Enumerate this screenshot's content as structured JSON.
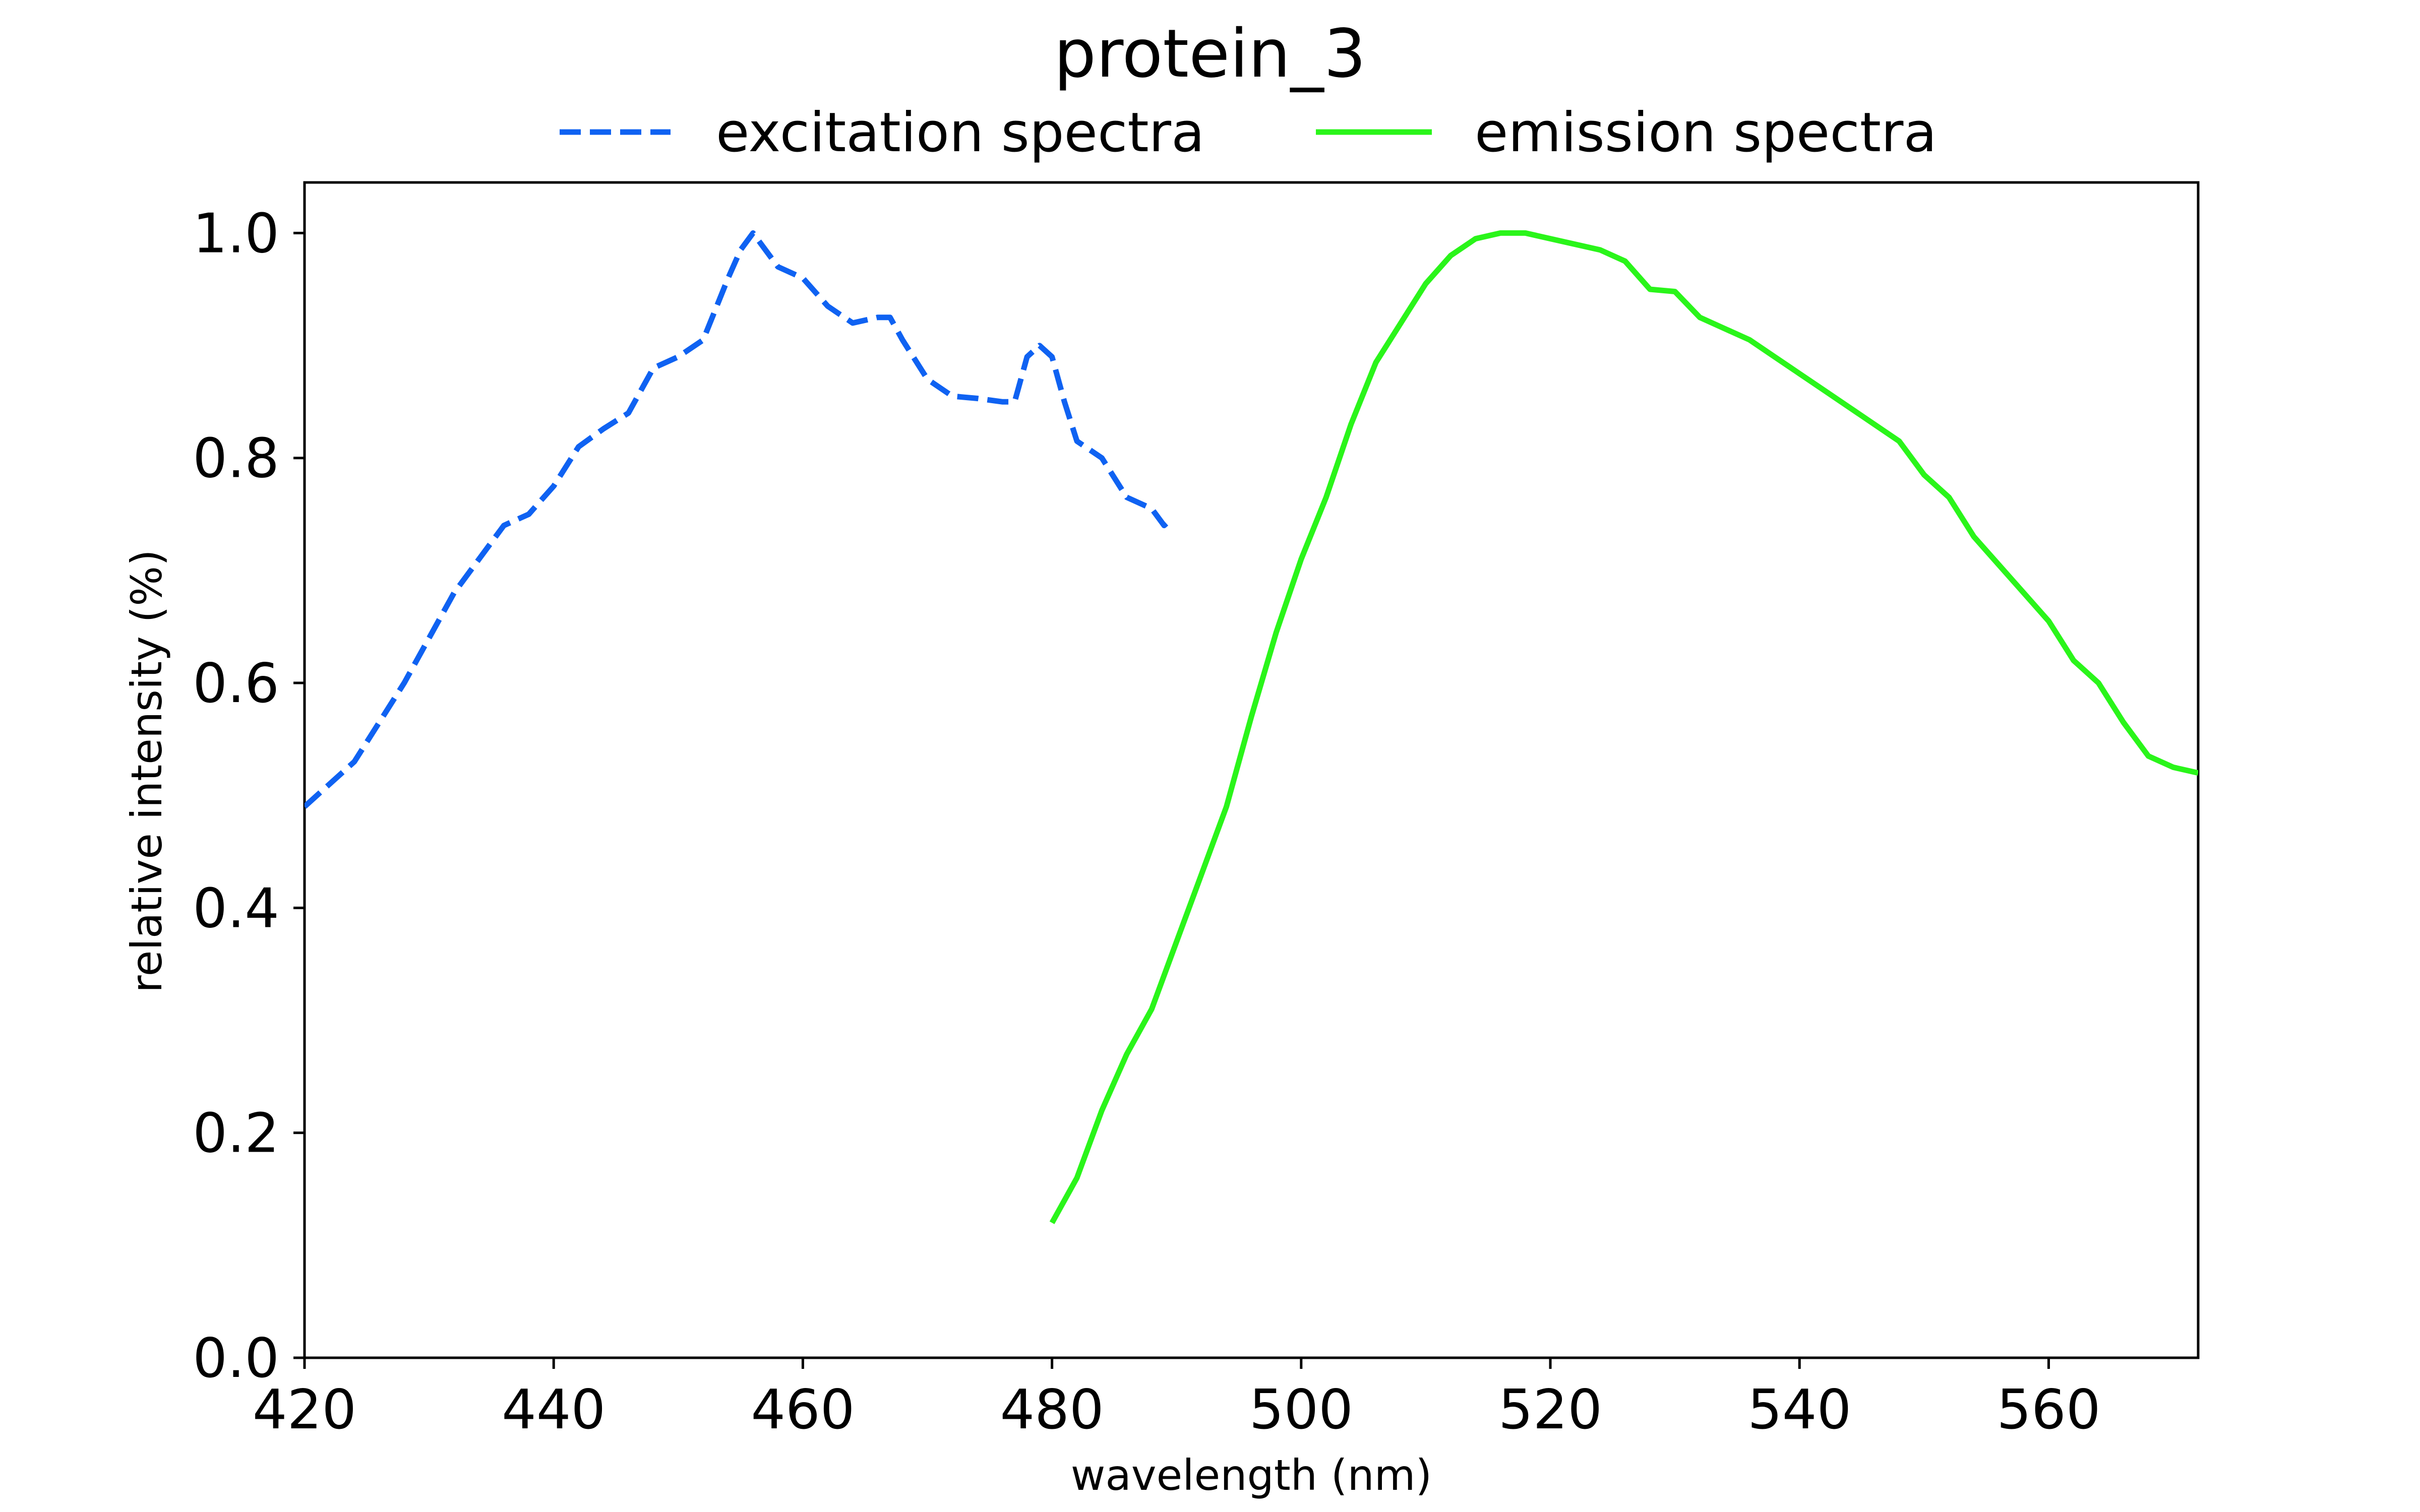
{
  "chart_data": {
    "type": "line",
    "title": "protein_3",
    "xlabel": "wavelength (nm)",
    "ylabel": "relative intensity (%)",
    "xlim": [
      420,
      572
    ],
    "ylim": [
      0.0,
      1.045
    ],
    "xticks": [
      420,
      440,
      460,
      480,
      500,
      520,
      540,
      560
    ],
    "xtick_labels": [
      "420",
      "440",
      "460",
      "480",
      "500",
      "520",
      "540",
      "560"
    ],
    "yticks": [
      0.0,
      0.2,
      0.4,
      0.6,
      0.8,
      1.0
    ],
    "ytick_labels": [
      "0.0",
      "0.2",
      "0.4",
      "0.6",
      "0.8",
      "1.0"
    ],
    "grid": false,
    "legend_position": "top-center",
    "series": [
      {
        "name": "excitation spectra",
        "color": "#0f62f2",
        "style": "dashed",
        "x": [
          420,
          422,
          424,
          426,
          428,
          430,
          432,
          434,
          436,
          438,
          440,
          442,
          444,
          446,
          448,
          450,
          452,
          454,
          455,
          456,
          458,
          460,
          462,
          464,
          466,
          467,
          468,
          470,
          472,
          474,
          476,
          477,
          478,
          479,
          480,
          481,
          482,
          484,
          486,
          488,
          489,
          489.5
        ],
        "y": [
          0.49,
          0.51,
          0.53,
          0.565,
          0.6,
          0.64,
          0.68,
          0.71,
          0.74,
          0.75,
          0.775,
          0.81,
          0.826,
          0.84,
          0.88,
          0.89,
          0.905,
          0.96,
          0.985,
          1.0,
          0.97,
          0.96,
          0.935,
          0.92,
          0.925,
          0.925,
          0.905,
          0.87,
          0.855,
          0.853,
          0.85,
          0.85,
          0.89,
          0.9,
          0.89,
          0.85,
          0.815,
          0.8,
          0.765,
          0.755,
          0.74,
          0.745
        ]
      },
      {
        "name": "emission spectra",
        "color": "#2af51a",
        "style": "solid",
        "x": [
          480,
          482,
          484,
          486,
          488,
          490,
          492,
          494,
          496,
          498,
          500,
          502,
          504,
          506,
          508,
          510,
          512,
          514,
          516,
          518,
          520,
          522,
          524,
          526,
          528,
          530,
          532,
          534,
          536,
          538,
          540,
          542,
          544,
          546,
          548,
          550,
          552,
          554,
          556,
          558,
          560,
          562,
          564,
          566,
          568,
          570,
          572
        ],
        "y": [
          0.12,
          0.16,
          0.22,
          0.27,
          0.31,
          0.37,
          0.43,
          0.49,
          0.57,
          0.645,
          0.71,
          0.765,
          0.83,
          0.885,
          0.92,
          0.955,
          0.98,
          0.995,
          1.0,
          1.0,
          0.995,
          0.99,
          0.985,
          0.975,
          0.95,
          0.948,
          0.925,
          0.915,
          0.905,
          0.89,
          0.875,
          0.86,
          0.845,
          0.83,
          0.815,
          0.785,
          0.765,
          0.73,
          0.705,
          0.68,
          0.655,
          0.62,
          0.6,
          0.565,
          0.535,
          0.525,
          0.52
        ]
      }
    ]
  }
}
